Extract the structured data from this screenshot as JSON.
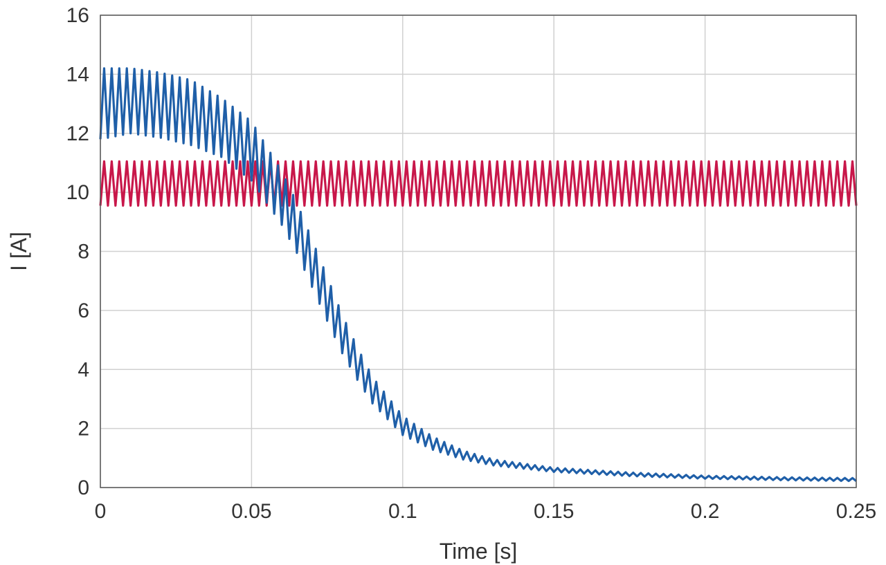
{
  "chart_data": {
    "type": "line",
    "title": "",
    "xlabel": "Time [s]",
    "ylabel": "I [A]",
    "xlim": [
      0,
      0.25
    ],
    "ylim": [
      0,
      16
    ],
    "grid": true,
    "legend": "none",
    "x_ticks": [
      {
        "value": 0,
        "label": "0"
      },
      {
        "value": 0.05,
        "label": "0.05"
      },
      {
        "value": 0.1,
        "label": "0.1"
      },
      {
        "value": 0.15,
        "label": "0.15"
      },
      {
        "value": 0.2,
        "label": "0.2"
      },
      {
        "value": 0.25,
        "label": "0.25"
      }
    ],
    "y_ticks": [
      {
        "value": 0,
        "label": "0"
      },
      {
        "value": 2,
        "label": "2"
      },
      {
        "value": 4,
        "label": "4"
      },
      {
        "value": 6,
        "label": "6"
      },
      {
        "value": 8,
        "label": "8"
      },
      {
        "value": 10,
        "label": "10"
      },
      {
        "value": 12,
        "label": "12"
      },
      {
        "value": 14,
        "label": "14"
      },
      {
        "value": 16,
        "label": "16"
      }
    ],
    "series": [
      {
        "color": "#c8174a",
        "ripple_cycles": 100,
        "points": [
          {
            "x": 0,
            "mean": 10.3,
            "amp": 0.75
          },
          {
            "x": 0.25,
            "mean": 10.3,
            "amp": 0.75
          }
        ]
      },
      {
        "color": "#1f5fa8",
        "ripple_cycles": 100,
        "points": [
          {
            "x": 0,
            "mean": 13.0,
            "amp": 1.2
          },
          {
            "x": 0.01,
            "mean": 13.1,
            "amp": 1.1
          },
          {
            "x": 0.02,
            "mean": 12.95,
            "amp": 1.1
          },
          {
            "x": 0.03,
            "mean": 12.7,
            "amp": 1.1
          },
          {
            "x": 0.04,
            "mean": 12.2,
            "amp": 1.0
          },
          {
            "x": 0.05,
            "mean": 11.4,
            "amp": 1.0
          },
          {
            "x": 0.055,
            "mean": 10.6,
            "amp": 0.95
          },
          {
            "x": 0.06,
            "mean": 9.8,
            "amp": 0.9
          },
          {
            "x": 0.065,
            "mean": 8.8,
            "amp": 0.85
          },
          {
            "x": 0.07,
            "mean": 7.6,
            "amp": 0.8
          },
          {
            "x": 0.075,
            "mean": 6.4,
            "amp": 0.75
          },
          {
            "x": 0.08,
            "mean": 5.2,
            "amp": 0.65
          },
          {
            "x": 0.085,
            "mean": 4.2,
            "amp": 0.55
          },
          {
            "x": 0.09,
            "mean": 3.3,
            "amp": 0.45
          },
          {
            "x": 0.1,
            "mean": 2.1,
            "amp": 0.32
          },
          {
            "x": 0.11,
            "mean": 1.5,
            "amp": 0.22
          },
          {
            "x": 0.12,
            "mean": 1.1,
            "amp": 0.15
          },
          {
            "x": 0.13,
            "mean": 0.85,
            "amp": 0.1
          },
          {
            "x": 0.15,
            "mean": 0.6,
            "amp": 0.07
          },
          {
            "x": 0.175,
            "mean": 0.45,
            "amp": 0.06
          },
          {
            "x": 0.2,
            "mean": 0.35,
            "amp": 0.05
          },
          {
            "x": 0.225,
            "mean": 0.3,
            "amp": 0.05
          },
          {
            "x": 0.25,
            "mean": 0.27,
            "amp": 0.05
          }
        ]
      }
    ]
  }
}
